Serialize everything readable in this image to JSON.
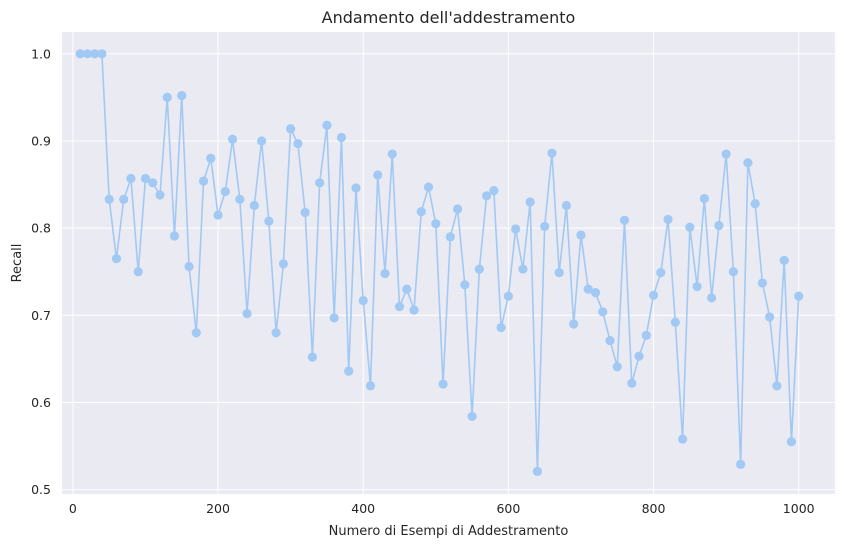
{
  "colors": {
    "background": "#ffffff",
    "plot_background": "#eaeaf2",
    "grid": "#ffffff",
    "series": "#a1c9f4",
    "text": "#262626"
  },
  "chart_data": {
    "type": "line",
    "title": "Andamento dell'addestramento",
    "xlabel": "Numero di Esempi di Addestramento",
    "ylabel": "Recall",
    "xlim": [
      -15,
      1050
    ],
    "ylim": [
      0.495,
      1.025
    ],
    "xticks": [
      0,
      200,
      400,
      600,
      800,
      1000
    ],
    "xtick_labels": [
      "0",
      "200",
      "400",
      "600",
      "800",
      "1000"
    ],
    "yticks": [
      0.5,
      0.6,
      0.7,
      0.8,
      0.9,
      1.0
    ],
    "ytick_labels": [
      "0.5",
      "0.6",
      "0.7",
      "0.8",
      "0.9",
      "1.0"
    ],
    "grid": true,
    "markers": true,
    "series": [
      {
        "x": [
          10,
          20,
          30,
          40,
          50,
          60,
          70,
          80,
          90,
          100,
          110,
          120,
          130,
          140,
          150,
          160,
          170,
          180,
          190,
          200,
          210,
          220,
          230,
          240,
          250,
          260,
          270,
          280,
          290,
          300,
          310,
          320,
          330,
          340,
          350,
          360,
          370,
          380,
          390,
          400,
          410,
          420,
          430,
          440,
          450,
          460,
          470,
          480,
          490,
          500,
          510,
          520,
          530,
          540,
          550,
          560,
          570,
          580,
          590,
          600,
          610,
          620,
          630,
          640,
          650,
          660,
          670,
          680,
          690,
          700,
          710,
          720,
          730,
          740,
          750,
          760,
          770,
          780,
          790,
          800,
          810,
          820,
          830,
          840,
          850,
          860,
          870,
          880,
          890,
          900,
          910,
          920,
          930,
          940,
          950,
          960,
          970,
          980,
          990,
          1000
        ],
        "y": [
          1.0,
          1.0,
          1.0,
          1.0,
          0.833,
          0.765,
          0.833,
          0.857,
          0.75,
          0.857,
          0.852,
          0.838,
          0.95,
          0.791,
          0.952,
          0.756,
          0.68,
          0.854,
          0.88,
          0.815,
          0.842,
          0.902,
          0.833,
          0.702,
          0.826,
          0.9,
          0.808,
          0.68,
          0.759,
          0.914,
          0.897,
          0.818,
          0.652,
          0.852,
          0.918,
          0.697,
          0.904,
          0.636,
          0.846,
          0.717,
          0.619,
          0.861,
          0.748,
          0.885,
          0.71,
          0.73,
          0.706,
          0.819,
          0.847,
          0.805,
          0.621,
          0.79,
          0.822,
          0.735,
          0.584,
          0.753,
          0.837,
          0.843,
          0.686,
          0.722,
          0.799,
          0.753,
          0.83,
          0.521,
          0.802,
          0.886,
          0.749,
          0.826,
          0.69,
          0.792,
          0.73,
          0.726,
          0.704,
          0.671,
          0.641,
          0.809,
          0.622,
          0.653,
          0.677,
          0.723,
          0.749,
          0.81,
          0.692,
          0.558,
          0.801,
          0.733,
          0.834,
          0.72,
          0.803,
          0.885,
          0.75,
          0.529,
          0.875,
          0.828,
          0.737,
          0.698,
          0.619,
          0.763,
          0.555,
          0.722
        ]
      }
    ]
  }
}
